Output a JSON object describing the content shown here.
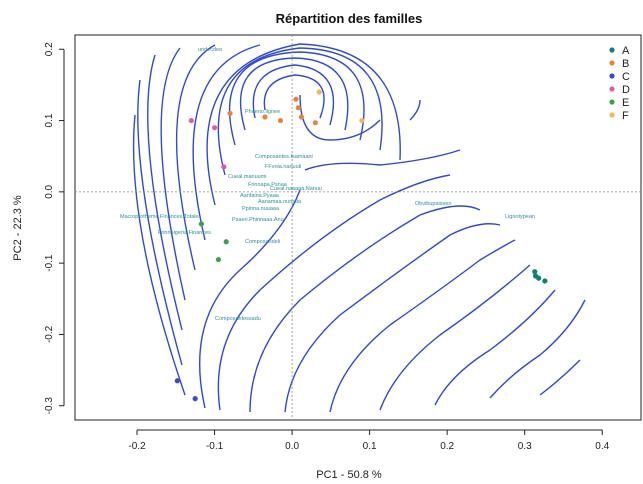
{
  "chart_data": {
    "type": "scatter",
    "title": "Répartition des familles",
    "xlabel": "PC1 -  50.8 %",
    "ylabel": "PC2 -  22.3 %",
    "xlim": [
      -0.28,
      0.45
    ],
    "ylim": [
      -0.32,
      0.22
    ],
    "x_ticks": [
      "-0.2",
      "-0.1",
      "0.0",
      "0.1",
      "0.2",
      "0.3",
      "0.4"
    ],
    "x_tick_values": [
      -0.2,
      -0.1,
      0.0,
      0.1,
      0.2,
      0.3,
      0.4
    ],
    "y_ticks": [
      "-0.3",
      "-0.2",
      "-0.1",
      "0.0",
      "0.1",
      "0.2"
    ],
    "y_tick_values": [
      -0.3,
      -0.2,
      -0.1,
      0.0,
      0.1,
      0.2
    ],
    "reference_lines": {
      "x": 0,
      "y": 0
    },
    "legend_position": "top-right",
    "series": [
      {
        "name": "A",
        "color": "#12806e",
        "points": [
          [
            0.313,
            -0.112
          ],
          [
            0.314,
            -0.118
          ],
          [
            0.318,
            -0.121
          ],
          [
            0.326,
            -0.125
          ]
        ]
      },
      {
        "name": "B",
        "color": "#e8843a",
        "points": [
          [
            -0.08,
            0.11
          ],
          [
            -0.035,
            0.105
          ],
          [
            -0.015,
            0.1
          ],
          [
            0.005,
            0.13
          ],
          [
            0.008,
            0.118
          ],
          [
            0.012,
            0.105
          ],
          [
            0.03,
            0.097
          ]
        ]
      },
      {
        "name": "C",
        "color": "#3b4cc4",
        "points": [
          [
            -0.148,
            -0.265
          ],
          [
            -0.125,
            -0.29
          ]
        ]
      },
      {
        "name": "D",
        "color": "#e05aa8",
        "points": [
          [
            -0.13,
            0.1
          ],
          [
            -0.1,
            0.09
          ],
          [
            -0.088,
            0.035
          ]
        ]
      },
      {
        "name": "E",
        "color": "#3aa34a",
        "points": [
          [
            -0.117,
            -0.045
          ],
          [
            -0.085,
            -0.07
          ],
          [
            -0.095,
            -0.095
          ]
        ]
      },
      {
        "name": "F",
        "color": "#f5b65a",
        "points": [
          [
            0.035,
            0.14
          ],
          [
            0.09,
            0.1
          ]
        ]
      }
    ]
  }
}
